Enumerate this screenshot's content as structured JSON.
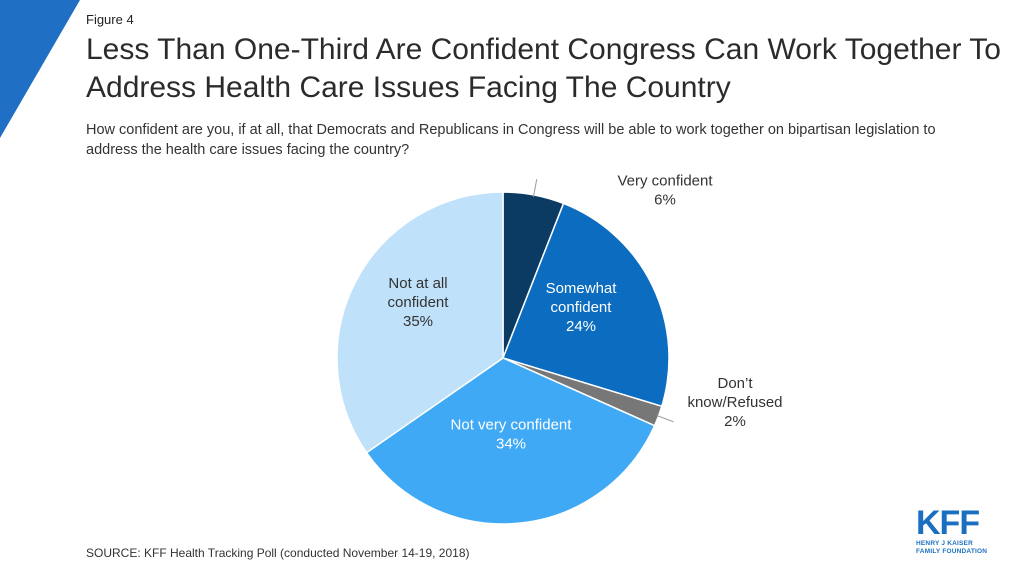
{
  "header": {
    "figure_label": "Figure 4",
    "title": "Less Than One-Third Are Confident Congress Can Work Together To Address Health Care Issues Facing The Country",
    "subtitle": "How confident are you, if at all, that Democrats and Republicans in Congress will be able to work together on bipartisan legislation to address the health care issues facing the country?"
  },
  "chart_data": {
    "type": "pie",
    "title": "",
    "slices": [
      {
        "label": "Very confident",
        "value": 6,
        "display": "6%",
        "color": "#0b3a63"
      },
      {
        "label": "Somewhat confident",
        "value": 24,
        "display": "24%",
        "color": "#0b6cc0"
      },
      {
        "label": "Don't know/Refused",
        "value": 2,
        "display": "2%",
        "color": "#777777"
      },
      {
        "label": "Not very confident",
        "value": 34,
        "display": "34%",
        "color": "#3fa9f5"
      },
      {
        "label": "Not at all confident",
        "value": 35,
        "display": "35%",
        "color": "#bfe1fa"
      }
    ],
    "label_lines": [
      [
        "Very confident",
        "6%"
      ],
      [
        "Somewhat",
        "confident",
        "24%"
      ],
      [
        "Don’t",
        "know/Refused",
        "2%"
      ],
      [
        "Not very confident",
        "34%"
      ],
      [
        "Not at all",
        "confident",
        "35%"
      ]
    ]
  },
  "footer": {
    "source": "SOURCE: KFF Health Tracking Poll (conducted November 14-19, 2018)"
  },
  "logo": {
    "mark": "KFF",
    "line1": "HENRY J KAISER",
    "line2": "FAMILY FOUNDATION",
    "color": "#1a6fc0"
  }
}
